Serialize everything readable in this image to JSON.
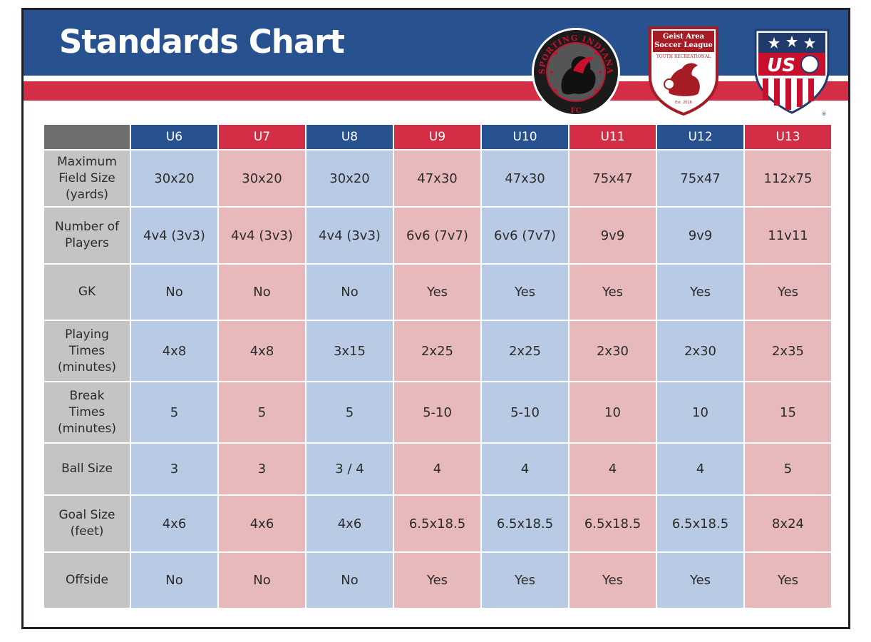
{
  "title": "Standards Chart",
  "logos": {
    "sporting": {
      "top_text": "SPORTING INDIANA",
      "bottom_text": "FC"
    },
    "geist": {
      "line1": "Geist Area",
      "line2": "Soccer League",
      "line3": "YOUTH RECREATIONAL",
      "est": "Est. 2016"
    },
    "us": {
      "text": "US",
      "registered": "®"
    }
  },
  "colors": {
    "blue": "#27528f",
    "red": "#d42e46",
    "blue_cell": "#b9cbe4",
    "red_cell": "#e8b9bb",
    "label_cell": "#c4c4c4"
  },
  "table": {
    "columns": [
      {
        "label": "U6",
        "color": "blue"
      },
      {
        "label": "U7",
        "color": "red"
      },
      {
        "label": "U8",
        "color": "blue"
      },
      {
        "label": "U9",
        "color": "red"
      },
      {
        "label": "U10",
        "color": "blue"
      },
      {
        "label": "U11",
        "color": "red"
      },
      {
        "label": "U12",
        "color": "blue"
      },
      {
        "label": "U13",
        "color": "red"
      }
    ],
    "rows": [
      {
        "label": [
          "Maximum",
          "Field Size",
          "(yards)"
        ],
        "values": [
          "30x20",
          "30x20",
          "30x20",
          "47x30",
          "47x30",
          "75x47",
          "75x47",
          "112x75"
        ]
      },
      {
        "label": [
          "Number of",
          "Players"
        ],
        "values": [
          "4v4 (3v3)",
          "4v4 (3v3)",
          "4v4 (3v3)",
          "6v6 (7v7)",
          "6v6 (7v7)",
          "9v9",
          "9v9",
          "11v11"
        ]
      },
      {
        "label": [
          "GK"
        ],
        "values": [
          "No",
          "No",
          "No",
          "Yes",
          "Yes",
          "Yes",
          "Yes",
          "Yes"
        ]
      },
      {
        "label": [
          "Playing",
          "Times",
          "(minutes)"
        ],
        "values": [
          "4x8",
          "4x8",
          "3x15",
          "2x25",
          "2x25",
          "2x30",
          "2x30",
          "2x35"
        ]
      },
      {
        "label": [
          "Break",
          "Times",
          "(minutes)"
        ],
        "values": [
          "5",
          "5",
          "5",
          "5-10",
          "5-10",
          "10",
          "10",
          "15"
        ]
      },
      {
        "label": [
          "Ball Size"
        ],
        "values": [
          "3",
          "3",
          "3 / 4",
          "4",
          "4",
          "4",
          "4",
          "5"
        ]
      },
      {
        "label": [
          "Goal Size",
          "(feet)"
        ],
        "values": [
          "4x6",
          "4x6",
          "4x6",
          "6.5x18.5",
          "6.5x18.5",
          "6.5x18.5",
          "6.5x18.5",
          "8x24"
        ]
      },
      {
        "label": [
          "Offside"
        ],
        "values": [
          "No",
          "No",
          "No",
          "Yes",
          "Yes",
          "Yes",
          "Yes",
          "Yes"
        ]
      }
    ]
  }
}
